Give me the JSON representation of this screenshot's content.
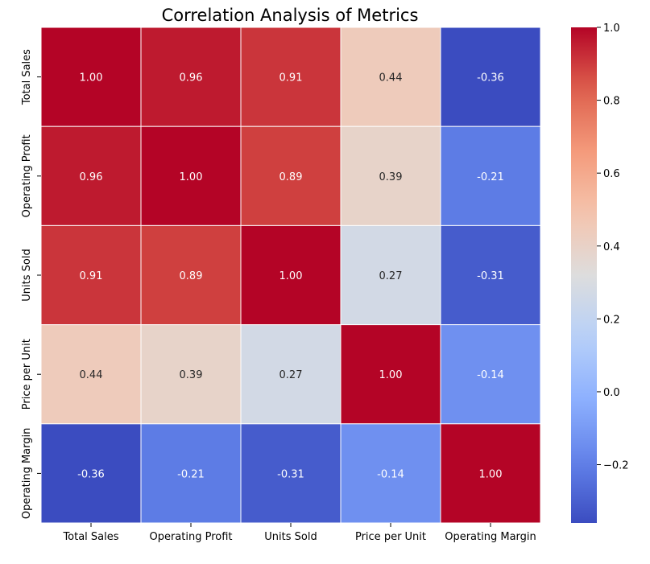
{
  "chart_data": {
    "type": "heatmap",
    "title": "Correlation Analysis of Metrics",
    "xlabel": "",
    "ylabel": "",
    "rows": [
      "Total Sales",
      "Operating Profit",
      "Units Sold",
      "Price per Unit",
      "Operating Margin"
    ],
    "columns": [
      "Total Sales",
      "Operating Profit",
      "Units Sold",
      "Price per Unit",
      "Operating Margin"
    ],
    "values": [
      [
        1.0,
        0.96,
        0.91,
        0.44,
        -0.36
      ],
      [
        0.96,
        1.0,
        0.89,
        0.39,
        -0.21
      ],
      [
        0.91,
        0.89,
        1.0,
        0.27,
        -0.31
      ],
      [
        0.44,
        0.39,
        0.27,
        1.0,
        -0.14
      ],
      [
        -0.36,
        -0.21,
        -0.31,
        -0.14,
        1.0
      ]
    ],
    "cell_labels": [
      [
        "1.00",
        "0.96",
        "0.91",
        "0.44",
        "-0.36"
      ],
      [
        "0.96",
        "1.00",
        "0.89",
        "0.39",
        "-0.21"
      ],
      [
        "0.91",
        "0.89",
        "1.00",
        "0.27",
        "-0.31"
      ],
      [
        "0.44",
        "0.39",
        "0.27",
        "1.00",
        "-0.14"
      ],
      [
        "-0.36",
        "-0.21",
        "-0.31",
        "-0.14",
        "1.00"
      ]
    ],
    "colormap": "coolwarm",
    "vmin": -0.36,
    "vmax": 1.0,
    "colorbar": {
      "ticks": [
        -0.2,
        0.0,
        0.2,
        0.4,
        0.6,
        0.8,
        1.0
      ],
      "tick_labels": [
        "−0.2",
        "0.0",
        "0.2",
        "0.4",
        "0.6",
        "0.8",
        "1.0"
      ]
    },
    "grid": false
  }
}
